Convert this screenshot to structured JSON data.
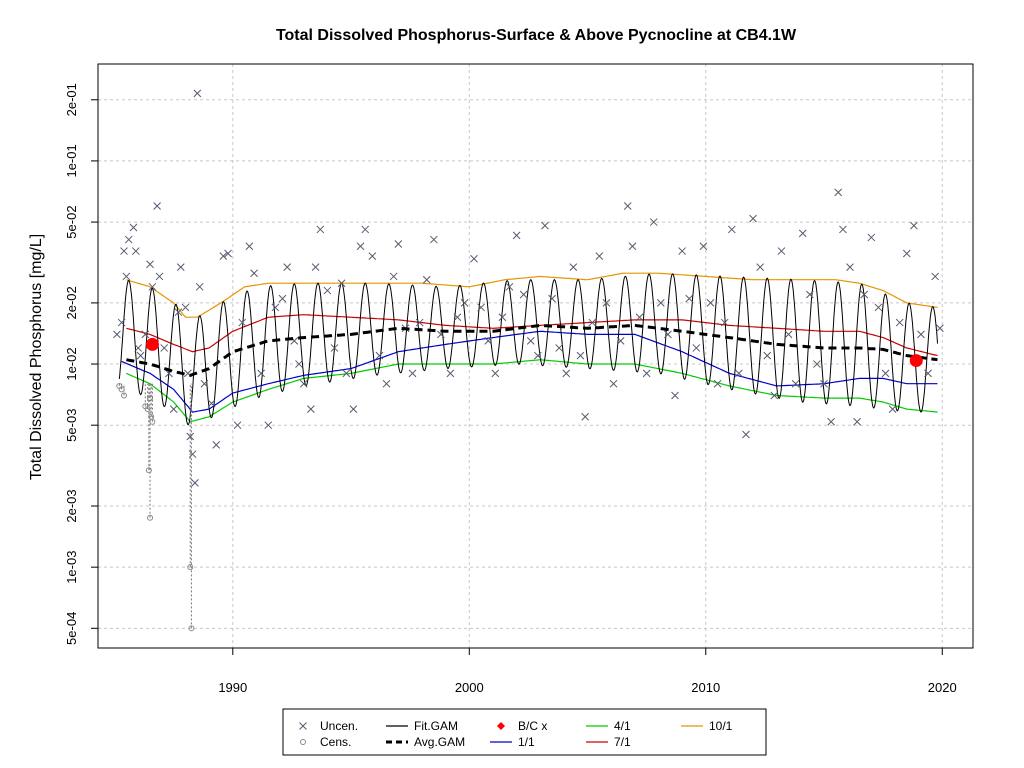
{
  "chart_data": {
    "type": "scatter",
    "title": "Total Dissolved Phosphorus-Surface & Above Pycnocline at CB4.1W",
    "xlabel": "",
    "ylabel": "Total Dissolved Phosphorus [mg/L]",
    "xlim": [
      1984.3,
      2021.3
    ],
    "ylim": [
      0.0004,
      0.3
    ],
    "log_y": true,
    "grid": true,
    "x_ticks": [
      {
        "value": 1990,
        "label": "1990"
      },
      {
        "value": 2000,
        "label": "2000"
      },
      {
        "value": 2010,
        "label": "2010"
      },
      {
        "value": 2020,
        "label": "2020"
      }
    ],
    "y_ticks": [
      {
        "value": 0.0005,
        "label": "5e-04"
      },
      {
        "value": 0.001,
        "label": "1e-03"
      },
      {
        "value": 0.002,
        "label": "2e-03"
      },
      {
        "value": 0.005,
        "label": "5e-03"
      },
      {
        "value": 0.01,
        "label": "1e-02"
      },
      {
        "value": 0.02,
        "label": "2e-02"
      },
      {
        "value": 0.05,
        "label": "5e-02"
      },
      {
        "value": 0.1,
        "label": "1e-01"
      },
      {
        "value": 0.2,
        "label": "2e-01"
      }
    ],
    "legend": {
      "placement": "bottom",
      "entries": [
        {
          "label": "Uncen.",
          "symbol": "x",
          "color": "#555a6e"
        },
        {
          "label": "Cens.",
          "symbol": "circle",
          "color": "#888888"
        },
        {
          "label": "Fit.GAM",
          "symbol": "line",
          "color": "#000000"
        },
        {
          "label": "Avg.GAM",
          "symbol": "dashed",
          "color": "#000000"
        },
        {
          "label": "B/C x",
          "symbol": "diamond",
          "color": "#ff0000"
        },
        {
          "label": "1/1",
          "symbol": "line",
          "color": "#0000cc"
        },
        {
          "label": "4/1",
          "symbol": "line",
          "color": "#00cc00"
        },
        {
          "label": "7/1",
          "symbol": "line",
          "color": "#cc0000"
        },
        {
          "label": "10/1",
          "symbol": "line",
          "color": "#e69500"
        }
      ]
    },
    "series": [
      {
        "name": "10/1",
        "color": "#e69500",
        "x": [
          1985.5,
          1986.5,
          1987.5,
          1988,
          1988.5,
          1989.5,
          1990.5,
          1991.5,
          1992.5,
          1994,
          1996,
          1998,
          2000,
          2001.5,
          2003,
          2005,
          2006.5,
          2008,
          2010,
          2012,
          2014,
          2015.5,
          2016.5,
          2017.5,
          2018.5,
          2019.8
        ],
        "y": [
          0.026,
          0.024,
          0.02,
          0.017,
          0.017,
          0.02,
          0.024,
          0.025,
          0.025,
          0.025,
          0.025,
          0.025,
          0.024,
          0.026,
          0.027,
          0.026,
          0.028,
          0.028,
          0.027,
          0.026,
          0.026,
          0.026,
          0.025,
          0.023,
          0.02,
          0.019
        ]
      },
      {
        "name": "7/1",
        "color": "#cc0000",
        "x": [
          1985.5,
          1986.5,
          1987.5,
          1988.3,
          1989,
          1990,
          1991.5,
          1993,
          1995,
          1997,
          1999,
          2001,
          2003,
          2005,
          2007,
          2009,
          2011,
          2013,
          2015,
          2016.5,
          2017.5,
          2018.5,
          2019.8
        ],
        "y": [
          0.015,
          0.014,
          0.0125,
          0.0115,
          0.012,
          0.0145,
          0.017,
          0.0175,
          0.017,
          0.0165,
          0.0155,
          0.015,
          0.0155,
          0.016,
          0.0165,
          0.0165,
          0.0155,
          0.015,
          0.0145,
          0.0145,
          0.0135,
          0.012,
          0.011
        ]
      },
      {
        "name": "Avg.GAM",
        "color": "#000000",
        "x": [
          1985.5,
          1986.5,
          1987.5,
          1988.2,
          1989,
          1990,
          1991.5,
          1993,
          1995,
          1997,
          1999,
          2001,
          2003,
          2005,
          2007,
          2009,
          2011,
          2013,
          2015,
          2016.5,
          2017.5,
          2018.5,
          2019.8
        ],
        "y": [
          0.0105,
          0.01,
          0.0092,
          0.0088,
          0.0095,
          0.0115,
          0.013,
          0.0135,
          0.014,
          0.015,
          0.0145,
          0.0145,
          0.0155,
          0.015,
          0.0155,
          0.0145,
          0.0135,
          0.0125,
          0.012,
          0.012,
          0.0118,
          0.011,
          0.0105
        ]
      },
      {
        "name": "1/1",
        "color": "#0000cc",
        "x": [
          1985.3,
          1986.5,
          1987.5,
          1988.3,
          1989,
          1990,
          1991.5,
          1993,
          1995,
          1997,
          1999,
          2001,
          2003,
          2005,
          2007,
          2009,
          2011,
          2013,
          2015,
          2016.5,
          2017.5,
          2018.5,
          2019.8
        ],
        "y": [
          0.0103,
          0.009,
          0.0075,
          0.0058,
          0.006,
          0.0072,
          0.008,
          0.0088,
          0.0095,
          0.0115,
          0.0125,
          0.0135,
          0.0145,
          0.014,
          0.014,
          0.0115,
          0.009,
          0.0078,
          0.008,
          0.0085,
          0.0085,
          0.008,
          0.008
        ]
      },
      {
        "name": "4/1",
        "color": "#00cc00",
        "x": [
          1985.5,
          1986.5,
          1987.5,
          1988.2,
          1989,
          1990,
          1991.5,
          1993,
          1995,
          1997,
          1999,
          2001,
          2003,
          2005,
          2007,
          2009,
          2011,
          2013,
          2015,
          2016.5,
          2017.5,
          2018.5,
          2019.8
        ],
        "y": [
          0.009,
          0.008,
          0.0065,
          0.0052,
          0.0055,
          0.0065,
          0.0075,
          0.0085,
          0.009,
          0.01,
          0.01,
          0.01,
          0.0105,
          0.01,
          0.01,
          0.009,
          0.0078,
          0.007,
          0.0068,
          0.0068,
          0.0065,
          0.006,
          0.0058
        ]
      }
    ],
    "fit_gam": {
      "name": "Fit.GAM",
      "color": "#000000",
      "period_years": 1,
      "peak_fraction": 0.6,
      "peak": {
        "x": [
          1985.5,
          1986.5,
          1987.5,
          1988.5,
          1989.5,
          1991,
          1993,
          1996,
          1999,
          2002,
          2005,
          2008,
          2011,
          2014,
          2016.5,
          2018.5,
          2019.8
        ],
        "y": [
          0.026,
          0.024,
          0.02,
          0.017,
          0.02,
          0.024,
          0.025,
          0.025,
          0.024,
          0.026,
          0.026,
          0.028,
          0.027,
          0.026,
          0.025,
          0.02,
          0.019
        ]
      },
      "trough": {
        "x": [
          1985.5,
          1986.5,
          1987.5,
          1988.3,
          1989.5,
          1991,
          1993,
          1996,
          1999,
          2002,
          2005,
          2008,
          2011,
          2014,
          2016.5,
          2018.5,
          2019.8
        ],
        "y": [
          0.0075,
          0.0068,
          0.0058,
          0.0048,
          0.0058,
          0.0068,
          0.0078,
          0.0088,
          0.0095,
          0.01,
          0.0095,
          0.009,
          0.0075,
          0.0065,
          0.0062,
          0.0058,
          0.0058
        ]
      }
    },
    "bc_points": [
      {
        "x": 1986.6,
        "y": 0.0125
      },
      {
        "x": 2018.9,
        "y": 0.0104
      }
    ],
    "uncensored": [
      [
        1985.1,
        0.014
      ],
      [
        1985.3,
        0.016
      ],
      [
        1985.4,
        0.036
      ],
      [
        1985.5,
        0.027
      ],
      [
        1985.6,
        0.041
      ],
      [
        1985.8,
        0.047
      ],
      [
        1985.9,
        0.036
      ],
      [
        1986.0,
        0.012
      ],
      [
        1986.1,
        0.011
      ],
      [
        1986.3,
        0.014
      ],
      [
        1986.5,
        0.031
      ],
      [
        1986.6,
        0.024
      ],
      [
        1986.8,
        0.06
      ],
      [
        1986.9,
        0.027
      ],
      [
        1987.1,
        0.012
      ],
      [
        1987.3,
        0.009
      ],
      [
        1987.5,
        0.006
      ],
      [
        1987.7,
        0.018
      ],
      [
        1987.8,
        0.03
      ],
      [
        1988.0,
        0.019
      ],
      [
        1988.1,
        0.009
      ],
      [
        1988.2,
        0.0044
      ],
      [
        1988.3,
        0.0036
      ],
      [
        1988.4,
        0.0026
      ],
      [
        1988.5,
        0.215
      ],
      [
        1988.6,
        0.024
      ],
      [
        1988.8,
        0.008
      ],
      [
        1989.1,
        0.0064
      ],
      [
        1989.3,
        0.004
      ],
      [
        1989.6,
        0.034
      ],
      [
        1989.8,
        0.035
      ],
      [
        1990.2,
        0.005
      ],
      [
        1990.4,
        0.016
      ],
      [
        1990.7,
        0.038
      ],
      [
        1990.9,
        0.028
      ],
      [
        1991.2,
        0.009
      ],
      [
        1991.5,
        0.005
      ],
      [
        1991.8,
        0.019
      ],
      [
        1992.1,
        0.021
      ],
      [
        1992.3,
        0.03
      ],
      [
        1992.6,
        0.013
      ],
      [
        1992.8,
        0.01
      ],
      [
        1993.0,
        0.008
      ],
      [
        1993.3,
        0.006
      ],
      [
        1993.5,
        0.03
      ],
      [
        1993.7,
        0.046
      ],
      [
        1994.0,
        0.023
      ],
      [
        1994.3,
        0.012
      ],
      [
        1994.6,
        0.025
      ],
      [
        1994.8,
        0.009
      ],
      [
        1995.1,
        0.006
      ],
      [
        1995.4,
        0.038
      ],
      [
        1995.6,
        0.046
      ],
      [
        1995.9,
        0.034
      ],
      [
        1996.2,
        0.011
      ],
      [
        1996.5,
        0.008
      ],
      [
        1996.8,
        0.027
      ],
      [
        1997.0,
        0.039
      ],
      [
        1997.3,
        0.015
      ],
      [
        1997.6,
        0.009
      ],
      [
        1997.9,
        0.016
      ],
      [
        1998.2,
        0.026
      ],
      [
        1998.5,
        0.041
      ],
      [
        1998.8,
        0.014
      ],
      [
        1999.2,
        0.009
      ],
      [
        1999.5,
        0.017
      ],
      [
        1999.8,
        0.02
      ],
      [
        2000.2,
        0.033
      ],
      [
        2000.5,
        0.019
      ],
      [
        2000.8,
        0.013
      ],
      [
        2001.1,
        0.009
      ],
      [
        2001.4,
        0.017
      ],
      [
        2001.7,
        0.024
      ],
      [
        2002.0,
        0.043
      ],
      [
        2002.3,
        0.022
      ],
      [
        2002.6,
        0.013
      ],
      [
        2002.9,
        0.011
      ],
      [
        2003.2,
        0.048
      ],
      [
        2003.5,
        0.021
      ],
      [
        2003.8,
        0.012
      ],
      [
        2004.1,
        0.009
      ],
      [
        2004.4,
        0.03
      ],
      [
        2004.7,
        0.011
      ],
      [
        2004.9,
        0.0055
      ],
      [
        2005.2,
        0.016
      ],
      [
        2005.5,
        0.034
      ],
      [
        2005.8,
        0.02
      ],
      [
        2006.1,
        0.008
      ],
      [
        2006.4,
        0.013
      ],
      [
        2006.7,
        0.06
      ],
      [
        2006.9,
        0.038
      ],
      [
        2007.2,
        0.017
      ],
      [
        2007.5,
        0.009
      ],
      [
        2007.8,
        0.05
      ],
      [
        2008.1,
        0.02
      ],
      [
        2008.4,
        0.014
      ],
      [
        2008.7,
        0.007
      ],
      [
        2009.0,
        0.036
      ],
      [
        2009.3,
        0.021
      ],
      [
        2009.6,
        0.012
      ],
      [
        2009.9,
        0.038
      ],
      [
        2010.2,
        0.02
      ],
      [
        2010.5,
        0.008
      ],
      [
        2010.8,
        0.016
      ],
      [
        2011.1,
        0.046
      ],
      [
        2011.4,
        0.009
      ],
      [
        2011.7,
        0.0045
      ],
      [
        2012.0,
        0.052
      ],
      [
        2012.3,
        0.03
      ],
      [
        2012.6,
        0.011
      ],
      [
        2012.9,
        0.007
      ],
      [
        2013.2,
        0.036
      ],
      [
        2013.5,
        0.014
      ],
      [
        2013.8,
        0.008
      ],
      [
        2014.1,
        0.044
      ],
      [
        2014.4,
        0.022
      ],
      [
        2014.7,
        0.01
      ],
      [
        2015.0,
        0.008
      ],
      [
        2015.3,
        0.0052
      ],
      [
        2015.6,
        0.07
      ],
      [
        2015.8,
        0.046
      ],
      [
        2016.1,
        0.03
      ],
      [
        2016.4,
        0.0052
      ],
      [
        2016.7,
        0.022
      ],
      [
        2017.0,
        0.042
      ],
      [
        2017.3,
        0.019
      ],
      [
        2017.6,
        0.009
      ],
      [
        2017.9,
        0.006
      ],
      [
        2018.2,
        0.016
      ],
      [
        2018.5,
        0.035
      ],
      [
        2018.8,
        0.048
      ],
      [
        2019.1,
        0.014
      ],
      [
        2019.4,
        0.009
      ],
      [
        2019.7,
        0.027
      ],
      [
        2019.9,
        0.015
      ]
    ],
    "censored": [
      [
        1985.2,
        0.0078
      ],
      [
        1985.3,
        0.0075
      ],
      [
        1985.4,
        0.007
      ],
      [
        1986.3,
        0.0062
      ],
      [
        1986.4,
        0.006
      ],
      [
        1986.5,
        0.0068
      ],
      [
        1986.55,
        0.0055
      ],
      [
        1986.6,
        0.0052
      ],
      [
        1986.45,
        0.003
      ],
      [
        1986.5,
        0.00175
      ],
      [
        1988.2,
        0.001
      ],
      [
        1988.25,
        0.0005
      ]
    ]
  }
}
